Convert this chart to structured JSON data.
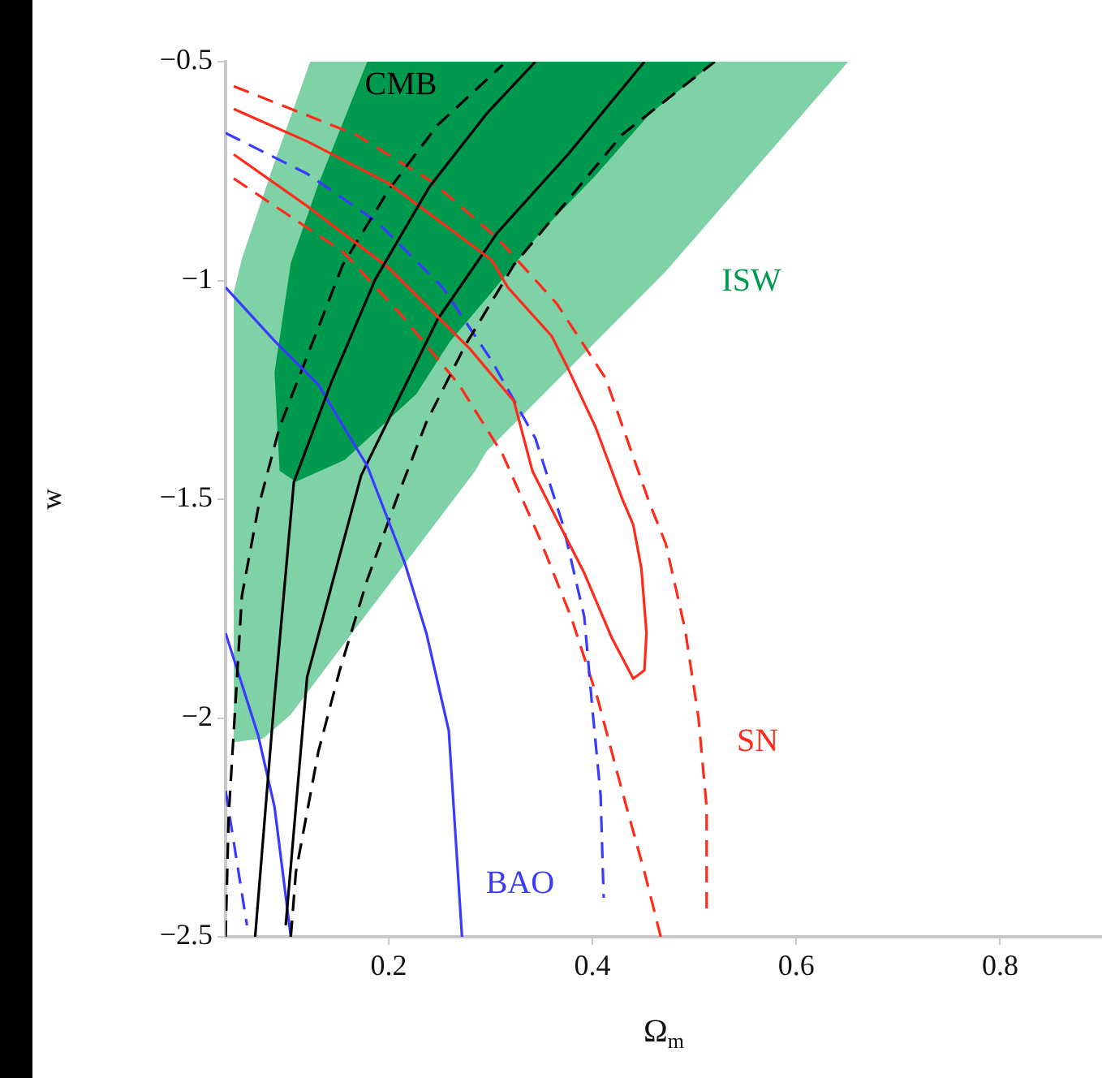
{
  "chart_data": {
    "type": "line",
    "xlabel": "Ω$_{m}$",
    "ylabel": "w",
    "xlim": [
      0.04,
      0.9
    ],
    "ylim": [
      -2.5,
      -0.5
    ],
    "xticks": [
      0.2,
      0.4,
      0.6,
      0.8
    ],
    "yticks": [
      {
        "value": -0.5,
        "label": "−0.5"
      },
      {
        "value": -1,
        "label": "−1"
      },
      {
        "value": -1.5,
        "label": "−1.5"
      },
      {
        "value": -2,
        "label": "−2"
      },
      {
        "value": -2.5,
        "label": "−2.5"
      }
    ],
    "grid": false,
    "legend": false,
    "marker": "none",
    "annotations": [
      "CMB",
      "ISW",
      "SN",
      "BAO"
    ],
    "series": [
      {
        "line_style": "solid",
        "color": "#000000",
        "x": [
          0.069,
          0.088,
          0.107,
          0.144,
          0.187,
          0.24,
          0.296,
          0.344
        ],
        "values": [
          -2.5,
          -1.955,
          -1.461,
          -1.231,
          -0.997,
          -0.786,
          -0.619,
          -0.5
        ]
      },
      {
        "type": "area",
        "color": "#009a4e",
        "x": [
          0.179,
          0.52,
          0.456,
          0.403,
          0.349,
          0.3,
          0.26,
          0.227,
          0.157,
          0.109,
          0.093,
          0.088,
          0.104,
          0.131,
          0.179
        ],
        "values": [
          -0.5,
          -0.5,
          -0.62,
          -0.76,
          -0.89,
          -1.03,
          -1.14,
          -1.26,
          -1.41,
          -1.46,
          -1.435,
          -1.21,
          -0.96,
          -0.78,
          -0.5
        ]
      },
      {
        "line_style": "solid",
        "color": "#ff2a1a",
        "x": [
          0.048,
          0.12,
          0.2,
          0.28,
          0.323,
          0.341,
          0.365,
          0.392,
          0.419,
          0.44,
          0.451,
          0.453,
          0.448,
          0.44,
          0.429,
          0.403,
          0.376,
          0.36,
          0.317,
          0.301,
          0.2,
          0.12,
          0.048
        ],
        "values": [
          -0.712,
          -0.83,
          -0.971,
          -1.157,
          -1.276,
          -1.435,
          -1.546,
          -1.669,
          -1.817,
          -1.91,
          -1.891,
          -1.806,
          -1.658,
          -1.558,
          -1.498,
          -1.335,
          -1.201,
          -1.127,
          -1.016,
          -0.953,
          -0.778,
          -0.682,
          -0.608
        ]
      },
      {
        "line_style": "solid",
        "color": "#3a3aff",
        "x": [
          0.04,
          0.088,
          0.131,
          0.179,
          0.216,
          0.237,
          0.259,
          0.272
        ],
        "values": [
          -1.016,
          -1.138,
          -1.238,
          -1.424,
          -1.647,
          -1.806,
          -2.029,
          -2.5
        ]
      },
      {
        "type": "area",
        "color": "#7fd1a6",
        "x": [
          0.048,
          0.048,
          0.056,
          0.088,
          0.123,
          0.651,
          0.472,
          0.296,
          0.285,
          0.216,
          0.152,
          0.104,
          0.077,
          0.048
        ],
        "values": [
          -2.055,
          -1.027,
          -0.95,
          -0.73,
          -0.5,
          -0.5,
          -0.979,
          -1.391,
          -1.435,
          -1.647,
          -1.843,
          -1.992,
          -2.047,
          -2.055
        ]
      },
      {
        "line_style": "solid",
        "color": "#000000",
        "x": [
          0.099,
          0.12,
          0.173,
          0.248,
          0.307,
          0.376,
          0.451
        ],
        "values": [
          -2.474,
          -1.906,
          -1.446,
          -1.089,
          -0.89,
          -0.712,
          -0.5
        ]
      },
      {
        "line_style": "dashed",
        "color": "#000000",
        "x": [
          0.04,
          0.043,
          0.056,
          0.072,
          0.093,
          0.155,
          0.2,
          0.248,
          0.312
        ],
        "values": [
          -2.5,
          -2.225,
          -1.721,
          -1.52,
          -1.335,
          -0.964,
          -0.793,
          -0.645,
          -0.507
        ]
      },
      {
        "line_style": "dashed",
        "color": "#000000",
        "x": [
          0.104,
          0.109,
          0.131,
          0.152,
          0.179,
          0.208,
          0.237,
          0.275,
          0.323,
          0.371,
          0.429,
          0.52
        ],
        "values": [
          -2.5,
          -2.352,
          -2.077,
          -1.891,
          -1.684,
          -1.498,
          -1.324,
          -1.149,
          -0.964,
          -0.83,
          -0.667,
          -0.5
        ]
      },
      {
        "line_style": "solid",
        "color": "#3a3aff",
        "x": [
          0.04,
          0.072,
          0.088,
          0.104
        ],
        "values": [
          -1.806,
          -2.04,
          -2.203,
          -2.5
        ]
      },
      {
        "line_style": "dashed",
        "color": "#3a3aff",
        "x": [
          0.04,
          0.12,
          0.189,
          0.253,
          0.301,
          0.344,
          0.371,
          0.392,
          0.4,
          0.408,
          0.411
        ],
        "values": [
          -0.663,
          -0.756,
          -0.867,
          -1.016,
          -1.183,
          -1.361,
          -1.558,
          -1.769,
          -1.981,
          -2.177,
          -2.411
        ]
      },
      {
        "line_style": "dashed",
        "color": "#3a3aff",
        "x": [
          0.04,
          0.061
        ],
        "values": [
          -2.166,
          -2.474
        ]
      },
      {
        "line_style": "dashed",
        "color": "#ff2a1a",
        "x": [
          0.048,
          0.168,
          0.243,
          0.307,
          0.365,
          0.413,
          0.456,
          0.472,
          0.491,
          0.504,
          0.512,
          0.512
        ],
        "values": [
          -0.556,
          -0.667,
          -0.775,
          -0.904,
          -1.053,
          -1.224,
          -1.509,
          -1.602,
          -1.799,
          -1.999,
          -2.203,
          -2.437
        ]
      },
      {
        "line_style": "dashed",
        "color": "#ff2a1a",
        "x": [
          0.048,
          0.155,
          0.211,
          0.269,
          0.312,
          0.347,
          0.379,
          0.405,
          0.429,
          0.451,
          0.467
        ],
        "values": [
          -0.767,
          -0.934,
          -1.075,
          -1.238,
          -1.398,
          -1.583,
          -1.769,
          -1.955,
          -2.166,
          -2.352,
          -2.5
        ]
      }
    ]
  }
}
